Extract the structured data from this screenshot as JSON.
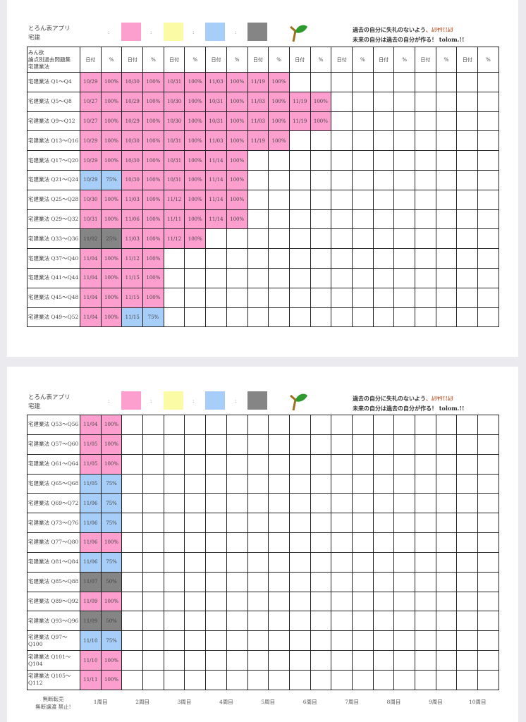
{
  "app_title": "とろん表アプリ",
  "subject": "宅建",
  "legend_separator": ":",
  "legend_colors": {
    "pink": "#fd9fce",
    "yellow": "#fbfba6",
    "blue": "#a7cef8",
    "gray": "#858585"
  },
  "icons": {
    "logo": "sprout-leaf-icon"
  },
  "motto": {
    "line1": "過去の自分に失礼のないよう",
    "line1_accent": "、ﾑﾘﾔﾘ!!ﾑﾘ",
    "line2": "未来の自分は過去の自分が作る！ tolom.!!"
  },
  "header": {
    "book_lines": [
      "みん欲",
      "論点別過去問題集",
      "宅建業法"
    ],
    "date_label": "日付",
    "pct_label": "%"
  },
  "page1_rows": [
    {
      "label": "宅建業法 Q1～Q4",
      "cells": [
        [
          "10/29",
          "100%",
          "pink"
        ],
        [
          "10/30",
          "100%",
          "pink"
        ],
        [
          "10/31",
          "100%",
          "pink"
        ],
        [
          "11/03",
          "100%",
          "pink"
        ],
        [
          "11/19",
          "100%",
          "pink"
        ]
      ]
    },
    {
      "label": "宅建業法 Q5～Q8",
      "cells": [
        [
          "10/27",
          "100%",
          "pink"
        ],
        [
          "10/29",
          "100%",
          "pink"
        ],
        [
          "10/30",
          "100%",
          "pink"
        ],
        [
          "10/31",
          "100%",
          "pink"
        ],
        [
          "11/03",
          "100%",
          "pink"
        ],
        [
          "11/19",
          "100%",
          "pink"
        ]
      ]
    },
    {
      "label": "宅建業法 Q9～Q12",
      "cells": [
        [
          "10/27",
          "100%",
          "pink"
        ],
        [
          "10/29",
          "100%",
          "pink"
        ],
        [
          "10/30",
          "100%",
          "pink"
        ],
        [
          "10/31",
          "100%",
          "pink"
        ],
        [
          "11/03",
          "100%",
          "pink"
        ],
        [
          "11/19",
          "100%",
          "pink"
        ]
      ]
    },
    {
      "label": "宅建業法 Q13～Q16",
      "cells": [
        [
          "10/29",
          "100%",
          "pink"
        ],
        [
          "10/30",
          "100%",
          "pink"
        ],
        [
          "10/31",
          "100%",
          "pink"
        ],
        [
          "11/03",
          "100%",
          "pink"
        ],
        [
          "11/19",
          "100%",
          "pink"
        ]
      ]
    },
    {
      "label": "宅建業法 Q17～Q20",
      "cells": [
        [
          "10/29",
          "100%",
          "pink"
        ],
        [
          "10/30",
          "100%",
          "pink"
        ],
        [
          "10/31",
          "100%",
          "pink"
        ],
        [
          "11/14",
          "100%",
          "pink"
        ]
      ]
    },
    {
      "label": "宅建業法 Q21～Q24",
      "cells": [
        [
          "10/29",
          "75%",
          "blue"
        ],
        [
          "10/30",
          "100%",
          "pink"
        ],
        [
          "10/31",
          "100%",
          "pink"
        ],
        [
          "11/14",
          "100%",
          "pink"
        ]
      ]
    },
    {
      "label": "宅建業法 Q25～Q28",
      "cells": [
        [
          "10/30",
          "100%",
          "pink"
        ],
        [
          "11/03",
          "100%",
          "pink"
        ],
        [
          "11/12",
          "100%",
          "pink"
        ],
        [
          "11/14",
          "100%",
          "pink"
        ]
      ]
    },
    {
      "label": "宅建業法 Q29～Q32",
      "cells": [
        [
          "10/31",
          "100%",
          "pink"
        ],
        [
          "11/06",
          "100%",
          "pink"
        ],
        [
          "11/11",
          "100%",
          "pink"
        ],
        [
          "11/14",
          "100%",
          "pink"
        ]
      ]
    },
    {
      "label": "宅建業法 Q33～Q36",
      "cells": [
        [
          "11/02",
          "25%",
          "gray"
        ],
        [
          "11/03",
          "100%",
          "pink"
        ],
        [
          "11/12",
          "100%",
          "pink"
        ]
      ]
    },
    {
      "label": "宅建業法 Q37～Q40",
      "cells": [
        [
          "11/04",
          "100%",
          "pink"
        ],
        [
          "11/12",
          "100%",
          "pink"
        ]
      ]
    },
    {
      "label": "宅建業法 Q41～Q44",
      "cells": [
        [
          "11/04",
          "100%",
          "pink"
        ],
        [
          "11/15",
          "100%",
          "pink"
        ]
      ]
    },
    {
      "label": "宅建業法 Q45～Q48",
      "cells": [
        [
          "11/04",
          "100%",
          "pink"
        ],
        [
          "11/15",
          "100%",
          "pink"
        ]
      ]
    },
    {
      "label": "宅建業法 Q49～Q52",
      "cells": [
        [
          "11/04",
          "100%",
          "pink"
        ],
        [
          "11/15",
          "75%",
          "blue"
        ]
      ]
    }
  ],
  "page2_rows": [
    {
      "label": "宅建業法 Q53～Q56",
      "cells": [
        [
          "11/04",
          "100%",
          "pink"
        ]
      ]
    },
    {
      "label": "宅建業法 Q57～Q60",
      "cells": [
        [
          "11/05",
          "100%",
          "pink"
        ]
      ]
    },
    {
      "label": "宅建業法 Q61～Q64",
      "cells": [
        [
          "11/05",
          "100%",
          "pink"
        ]
      ]
    },
    {
      "label": "宅建業法 Q65～Q68",
      "cells": [
        [
          "11/05",
          "75%",
          "blue"
        ]
      ]
    },
    {
      "label": "宅建業法 Q69～Q72",
      "cells": [
        [
          "11/06",
          "75%",
          "blue"
        ]
      ]
    },
    {
      "label": "宅建業法 Q73～Q76",
      "cells": [
        [
          "11/06",
          "75%",
          "blue"
        ]
      ]
    },
    {
      "label": "宅建業法 Q77～Q80",
      "cells": [
        [
          "11/06",
          "100%",
          "pink"
        ]
      ]
    },
    {
      "label": "宅建業法 Q81～Q84",
      "cells": [
        [
          "11/06",
          "75%",
          "blue"
        ]
      ]
    },
    {
      "label": "宅建業法 Q85～Q88",
      "cells": [
        [
          "11/07",
          "50%",
          "gray"
        ]
      ]
    },
    {
      "label": "宅建業法 Q89～Q92",
      "cells": [
        [
          "11/09",
          "100%",
          "pink"
        ]
      ]
    },
    {
      "label": "宅建業法 Q93～Q96",
      "cells": [
        [
          "11/09",
          "50%",
          "gray"
        ]
      ]
    },
    {
      "label": "宅建業法 Q97～Q100",
      "cells": [
        [
          "11/10",
          "75%",
          "blue"
        ]
      ]
    },
    {
      "label": "宅建業法 Q101～Q104",
      "cells": [
        [
          "11/10",
          "100%",
          "pink"
        ]
      ]
    },
    {
      "label": "宅建業法 Q105～Q112",
      "cells": [
        [
          "11/11",
          "100%",
          "pink"
        ]
      ]
    }
  ],
  "footer": {
    "notice_lines": [
      "無断転売",
      "無断譲渡 禁止!"
    ],
    "weeks": [
      "1周目",
      "2周目",
      "3周目",
      "4周目",
      "5周目",
      "6周目",
      "7周目",
      "8周目",
      "9周目",
      "10周目"
    ]
  }
}
